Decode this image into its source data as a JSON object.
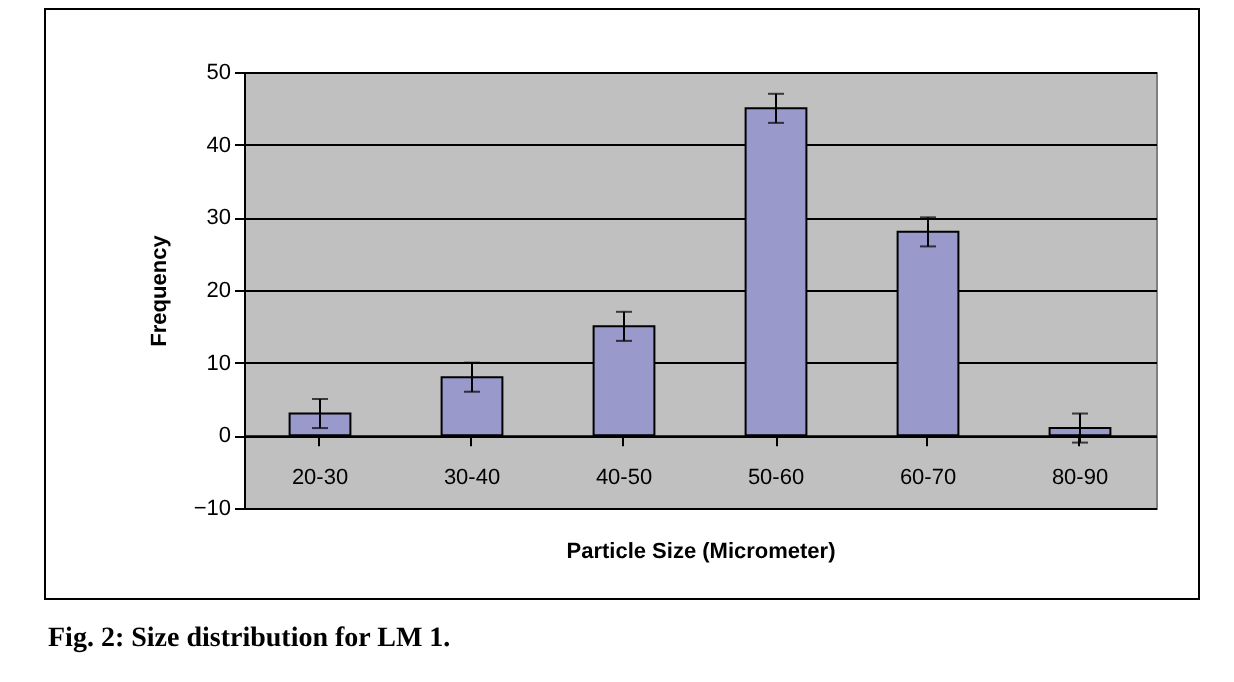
{
  "chart_data": {
    "type": "bar",
    "categories": [
      "20-30",
      "30-40",
      "40-50",
      "50-60",
      "60-70",
      "80-90"
    ],
    "values": [
      3,
      8,
      15,
      45,
      28,
      1
    ],
    "errors": [
      2,
      2,
      2,
      2,
      2,
      2
    ],
    "color": "#9999cc",
    "xlabel": "Particle Size (Micrometer)",
    "ylabel": "Frequency",
    "ylim": [
      -10,
      50
    ],
    "yticks": [
      -10,
      0,
      10,
      20,
      30,
      40,
      50
    ],
    "grid": "y",
    "annotations": [
      "Fig. 2: Size distribution for LM 1."
    ]
  }
}
